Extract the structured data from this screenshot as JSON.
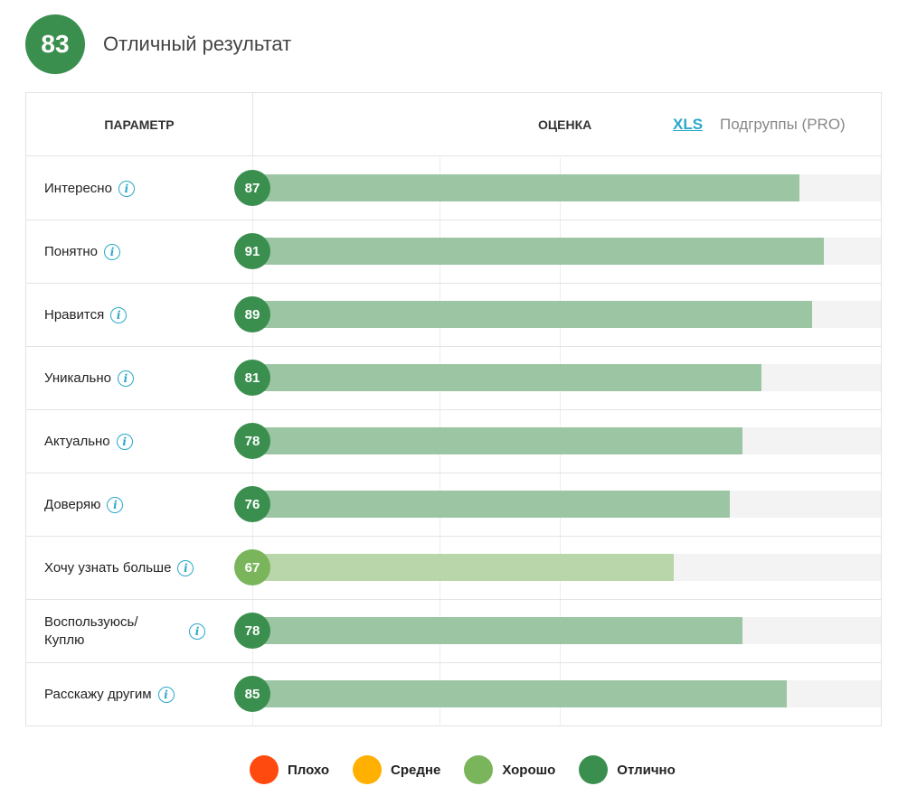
{
  "header": {
    "score": "83",
    "title": "Отличный результат"
  },
  "table": {
    "param_header": "ПАРАМЕТР",
    "score_header": "ОЦЕНКА",
    "xls_link": "XLS",
    "subgroups_label": "Подгруппы (PRO)"
  },
  "colors": {
    "excellent": "#3a8f4f",
    "excellent_bar": "#9cc6a3",
    "good": "#7ab55c",
    "good_bar": "#b8d6aa",
    "bad": "#ff4a0f",
    "medium": "#ffb000",
    "track": "#f3f3f3",
    "accent": "#2aa8c9"
  },
  "chart_data": {
    "type": "bar",
    "orientation": "horizontal",
    "xlim": [
      0,
      100
    ],
    "categories": [
      "Интересно",
      "Понятно",
      "Нравится",
      "Уникально",
      "Актуально",
      "Доверяю",
      "Хочу узнать больше",
      "Воспользуюсь/ Куплю",
      "Расскажу другим"
    ],
    "values": [
      87,
      91,
      89,
      81,
      78,
      76,
      67,
      78,
      85
    ],
    "ratings": [
      "Отлично",
      "Отлично",
      "Отлично",
      "Отлично",
      "Отлично",
      "Отлично",
      "Хорошо",
      "Отлично",
      "Отлично"
    ],
    "legend": [
      {
        "label": "Плохо",
        "color": "#ff4a0f"
      },
      {
        "label": "Средне",
        "color": "#ffb000"
      },
      {
        "label": "Хорошо",
        "color": "#7ab55c"
      },
      {
        "label": "Отлично",
        "color": "#3a8f4f"
      }
    ],
    "legend_position": "bottom-center"
  }
}
